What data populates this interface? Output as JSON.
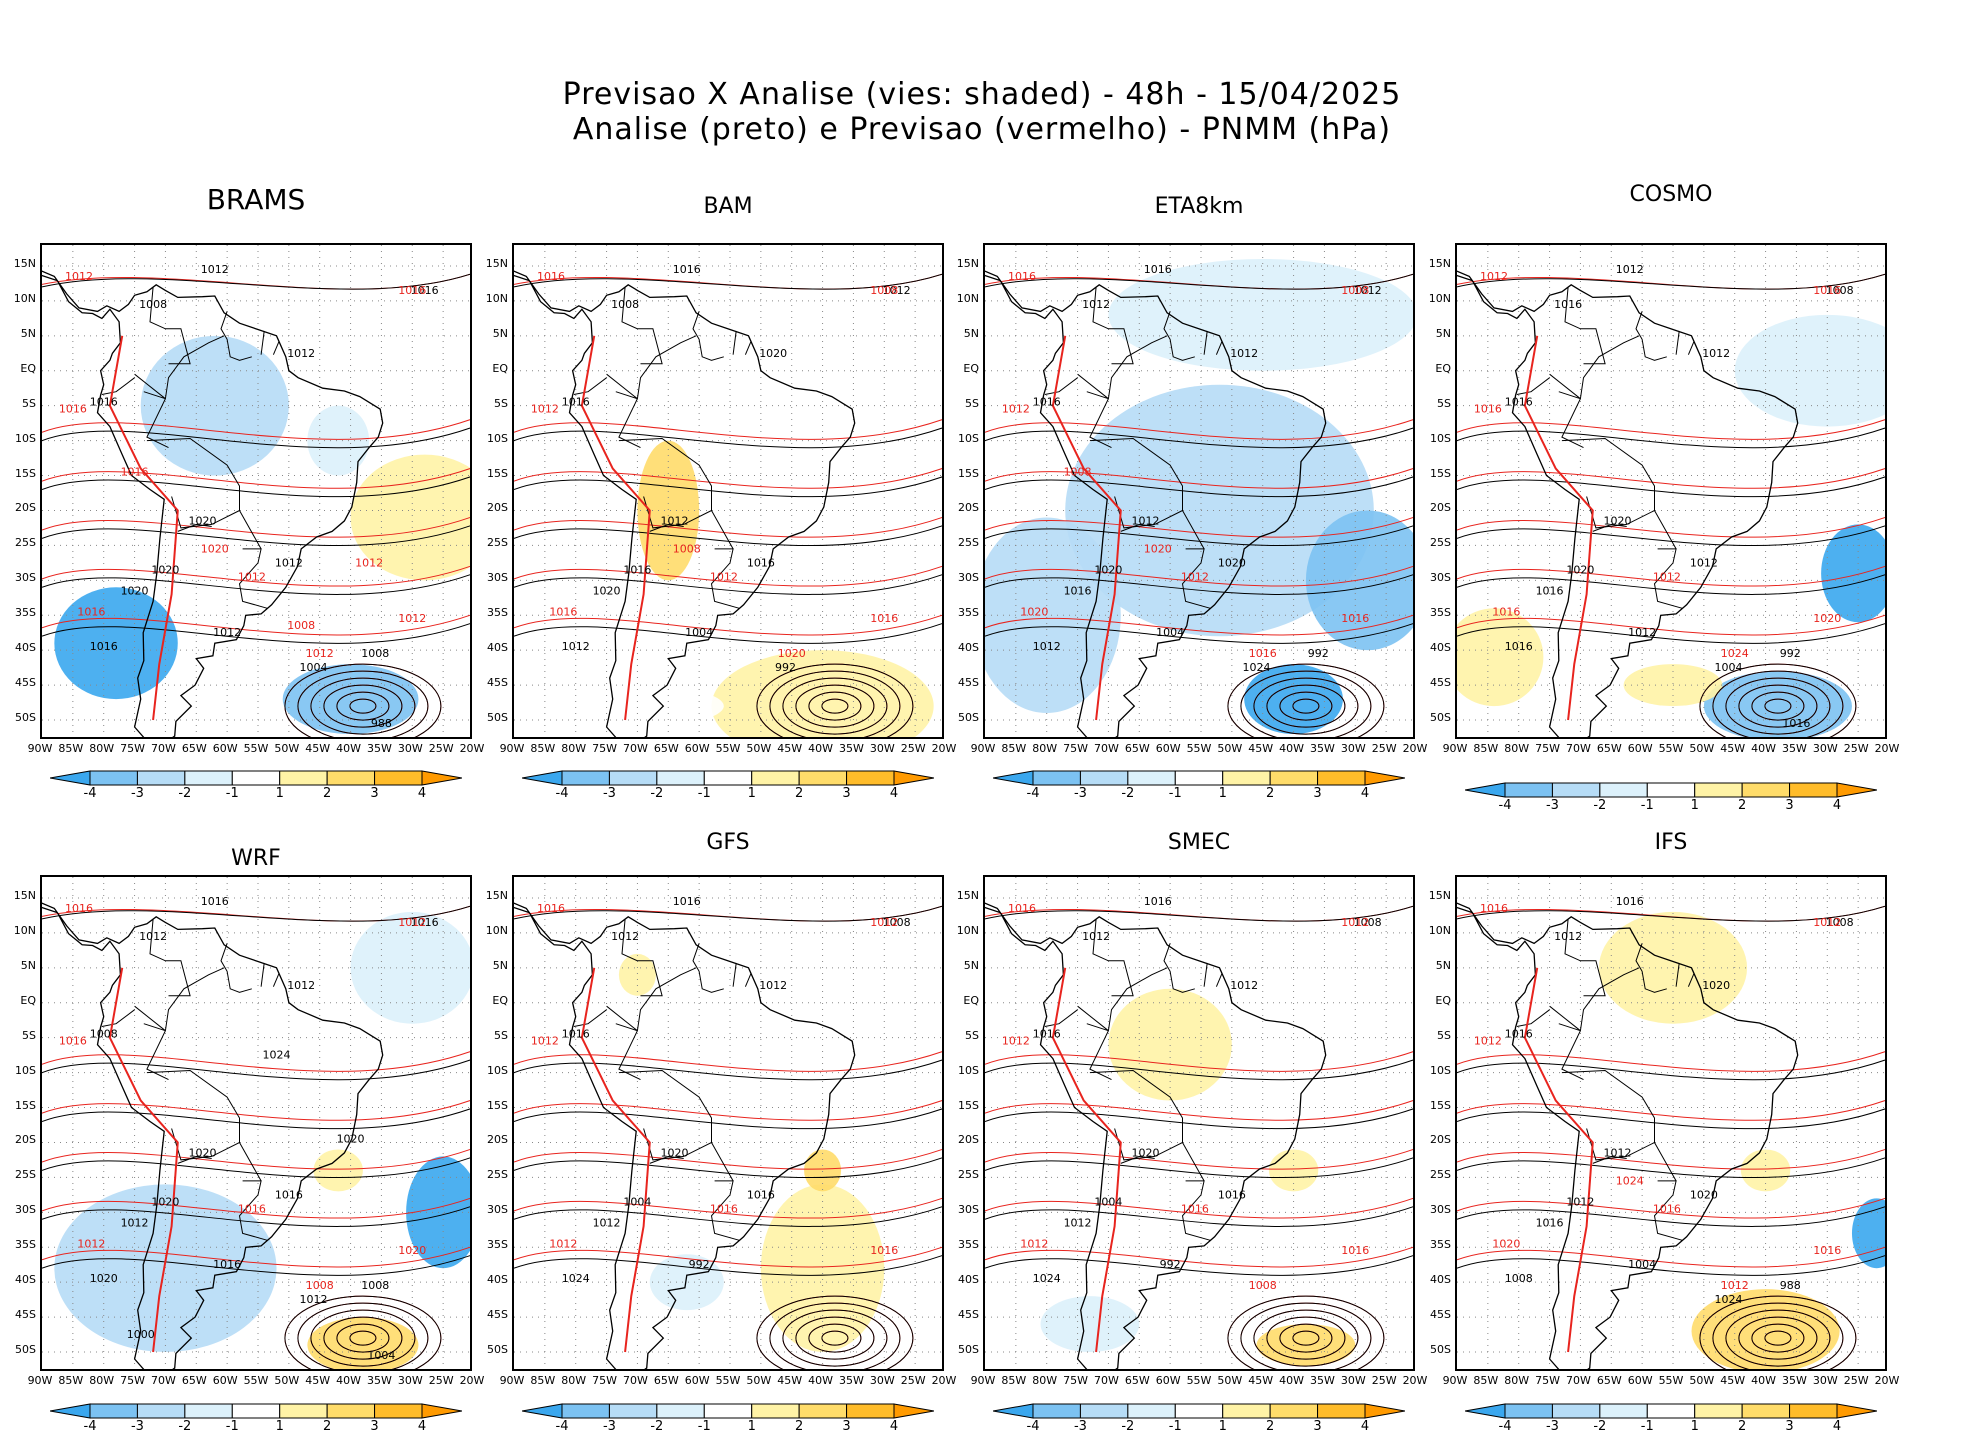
{
  "header": {
    "line1": "Previsao X Analise (vies: shaded) - 48h - 15/04/2025",
    "line2": "Analise (preto) e Previsao (vermelho) - PNMM (hPa)"
  },
  "axes": {
    "lat_labels": [
      "15N",
      "10N",
      "5N",
      "EQ",
      "5S",
      "10S",
      "15S",
      "20S",
      "25S",
      "30S",
      "35S",
      "40S",
      "45S",
      "50S"
    ],
    "lon_labels": [
      "90W",
      "85W",
      "80W",
      "75W",
      "70W",
      "65W",
      "60W",
      "55W",
      "50W",
      "45W",
      "40W",
      "35W",
      "30W",
      "25W",
      "20W"
    ]
  },
  "colorbar": {
    "labels": [
      "-4",
      "-3",
      "-2",
      "-1",
      "1",
      "2",
      "3",
      "4"
    ],
    "colors": [
      "#3aa7ee",
      "#7cc2f2",
      "#b6dcf6",
      "#dcf1fb",
      "#ffffff",
      "#fff3a6",
      "#ffdc6a",
      "#ffbc2a",
      "#ff9a00"
    ]
  },
  "colors": {
    "analysis": "#000000",
    "forecast": "#e8241e",
    "grid": "#888888"
  },
  "panels": [
    {
      "name": "BRAMS",
      "isobars_analysis": [
        "1012",
        "1008",
        "1016",
        "1012",
        "1016",
        "1020",
        "1012",
        "1020",
        "1020",
        "1016",
        "1012",
        "1004",
        "1008",
        "988"
      ],
      "isobars_forecast": [
        "1012",
        "1016",
        "1012",
        "1016",
        "1012",
        "1016",
        "1012",
        "1020",
        "1016",
        "1008",
        "1012"
      ]
    },
    {
      "name": "BAM",
      "isobars_analysis": [
        "1016",
        "1008",
        "1012",
        "1020",
        "1016",
        "1012",
        "1016",
        "1020",
        "1016",
        "1012",
        "1004",
        "992"
      ],
      "isobars_forecast": [
        "1016",
        "1008",
        "1012",
        "1012",
        "1016",
        "1016",
        "1020",
        "1008"
      ]
    },
    {
      "name": "ETA8km",
      "isobars_analysis": [
        "1016",
        "1012",
        "1012",
        "1012",
        "1016",
        "1012",
        "1020",
        "1016",
        "1020",
        "1012",
        "1004",
        "1024",
        "992"
      ],
      "isobars_forecast": [
        "1016",
        "1008",
        "1012",
        "1012",
        "1016",
        "1020",
        "1016",
        "1020",
        "1008"
      ]
    },
    {
      "name": "COSMO",
      "isobars_analysis": [
        "1012",
        "1016",
        "1008",
        "1012",
        "1016",
        "1020",
        "1012",
        "1016",
        "1020",
        "1016",
        "1012",
        "1004",
        "992",
        "1016"
      ],
      "isobars_forecast": [
        "1012",
        "1016",
        "1012",
        "1016",
        "1020",
        "1016",
        "1024"
      ]
    },
    {
      "name": "WRF",
      "isobars_analysis": [
        "1016",
        "1012",
        "1016",
        "1012",
        "1008",
        "1020",
        "1016",
        "1012",
        "1020",
        "1020",
        "1016",
        "1012",
        "1008",
        "1004",
        "1024",
        "1020",
        "1000"
      ],
      "isobars_forecast": [
        "1016",
        "1012",
        "1016",
        "1016",
        "1020",
        "1012",
        "1008"
      ]
    },
    {
      "name": "GFS",
      "isobars_analysis": [
        "1016",
        "1012",
        "1008",
        "1012",
        "1016",
        "1020",
        "1016",
        "1012",
        "1004",
        "1024",
        "992"
      ],
      "isobars_forecast": [
        "1016",
        "1012",
        "1016",
        "1012",
        "1016",
        "1012"
      ]
    },
    {
      "name": "SMEC",
      "isobars_analysis": [
        "1016",
        "1012",
        "1008",
        "1012",
        "1016",
        "1020",
        "1016",
        "1012",
        "1004",
        "1024",
        "992"
      ],
      "isobars_forecast": [
        "1016",
        "1012",
        "1016",
        "1012",
        "1016",
        "1012",
        "1008"
      ]
    },
    {
      "name": "IFS",
      "isobars_analysis": [
        "1016",
        "1012",
        "1008",
        "1020",
        "1016",
        "1012",
        "1020",
        "1016",
        "1012",
        "1008",
        "1004",
        "1024",
        "988"
      ],
      "isobars_forecast": [
        "1016",
        "1012",
        "1016",
        "1012",
        "1016",
        "1020",
        "1012",
        "1024"
      ]
    }
  ]
}
